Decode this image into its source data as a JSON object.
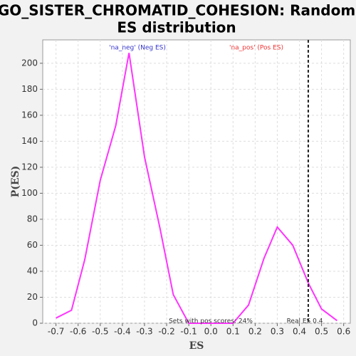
{
  "chart_data": {
    "type": "line",
    "title": [
      "GO_SISTER_CHROMATID_COHESION: Random",
      "ES distribution"
    ],
    "x_label": "ES",
    "y_label": "P(ES)",
    "x": [
      -0.7,
      -0.63,
      -0.57,
      -0.5,
      -0.43,
      -0.37,
      -0.3,
      -0.23,
      -0.17,
      -0.1,
      -0.03,
      0.03,
      0.1,
      0.17,
      0.24,
      0.3,
      0.37,
      0.44,
      0.5,
      0.57
    ],
    "series": [
      {
        "name": "P(ES)",
        "color": "#ff33ff",
        "values": [
          4,
          10,
          49,
          110,
          152,
          208,
          128,
          73,
          22,
          0,
          0,
          0,
          0,
          14,
          50,
          74,
          60,
          31,
          11,
          2
        ]
      }
    ],
    "real_es": 0.44,
    "annotations": [
      {
        "text": "'na_neg' (Neg ES)",
        "color": "#3333cc"
      },
      {
        "text": "'na_pos' (Pos ES)",
        "color": "#ee3333"
      },
      {
        "text": "Sets with pos scores: 24%",
        "color": "#333333"
      },
      {
        "text": "Real ES 0.4",
        "color": "#333333"
      }
    ],
    "xlim": [
      -0.76,
      0.63
    ],
    "ylim": [
      0,
      218
    ],
    "xticks": [
      -0.7,
      -0.6,
      -0.5,
      -0.4,
      -0.3,
      -0.2,
      -0.1,
      {
        "value": 0,
        "label": "0.0"
      },
      0.1,
      0.2,
      0.3,
      0.4,
      0.5,
      0.6
    ],
    "yticks": [
      0,
      20,
      40,
      60,
      80,
      100,
      120,
      140,
      160,
      180,
      200
    ],
    "grid": true
  }
}
